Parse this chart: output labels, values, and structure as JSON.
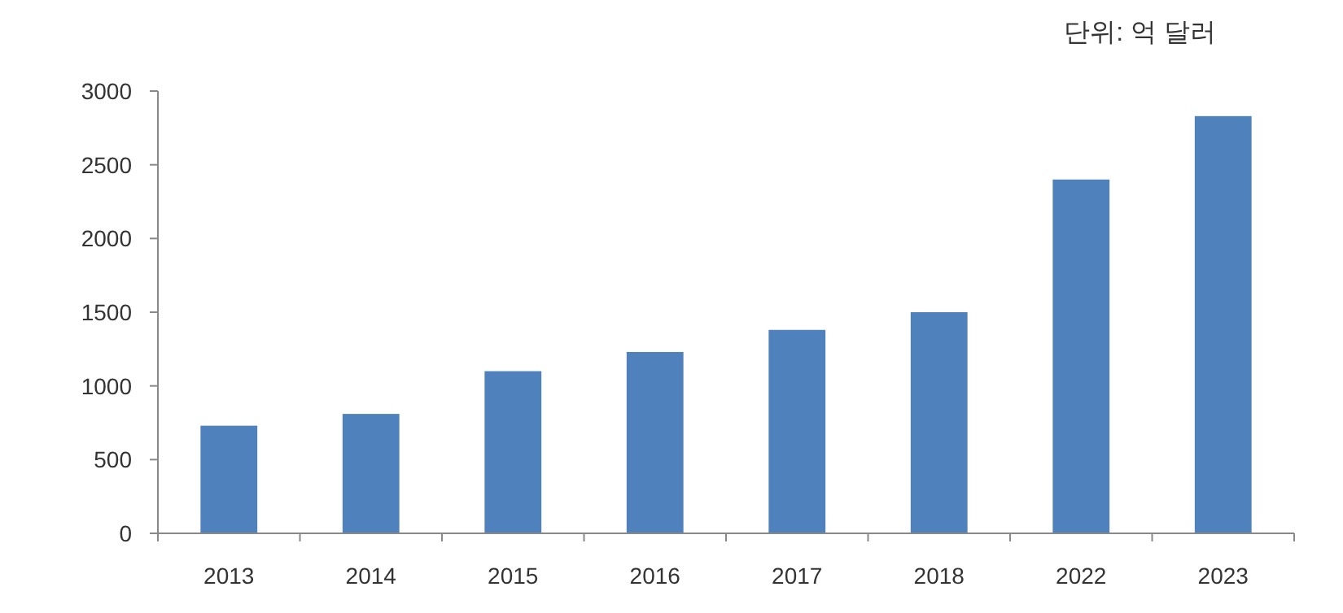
{
  "chart_data": {
    "type": "bar",
    "annotations": [
      "단위: 억 달러"
    ],
    "categories": [
      "2013",
      "2014",
      "2015",
      "2016",
      "2017",
      "2018",
      "2022",
      "2023"
    ],
    "values": [
      730,
      810,
      1100,
      1230,
      1380,
      1500,
      2400,
      2830
    ],
    "color": "#4f81bd",
    "ylim": [
      0,
      3000
    ],
    "yticks": [
      0,
      500,
      1000,
      1500,
      2000,
      2500,
      3000
    ],
    "grid": false
  }
}
